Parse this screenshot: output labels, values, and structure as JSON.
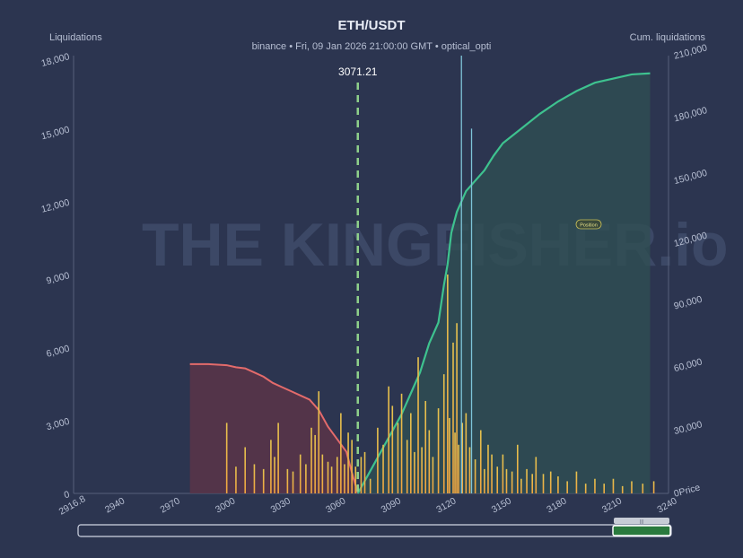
{
  "chart_data": {
    "type": "bar",
    "title": "ETH/USDT",
    "subtitle": "binance  •  Fri, 09 Jan 2026 21:00:00 GMT  •  optical_opti",
    "ylabel_left": "Liquidations",
    "ylabel_right": "Cum. liquidations",
    "xlabel": "Price",
    "xlim": [
      2916.8,
      3240
    ],
    "ylim_left": [
      0,
      18000
    ],
    "ylim_right": [
      0,
      210000
    ],
    "x_ticks": [
      "2916.8",
      "2940",
      "2970",
      "3000",
      "3030",
      "3060",
      "3090",
      "3120",
      "3150",
      "3180",
      "3210",
      "3240"
    ],
    "y_ticks_left": [
      "0",
      "3,000",
      "6,000",
      "9,000",
      "12,000",
      "15,000",
      "18,000"
    ],
    "y_ticks_right": [
      "0",
      "30,000",
      "60,000",
      "90,000",
      "120,000",
      "150,000",
      "180,000",
      "210,000"
    ],
    "current_price": 3071.21,
    "current_price_label": "3071.21",
    "watermark": "THE KINGFISHER.io",
    "badge": "Position",
    "colors": {
      "background": "#2c3550",
      "bars": "#e2b94a",
      "short_cum_line": "#e36b6b",
      "long_cum_line": "#3ec28f",
      "price_line": "#8ed08a",
      "spike_lines": "#7ec4d8"
    },
    "bars": [
      [
        3000,
        2900
      ],
      [
        3005,
        1100
      ],
      [
        3010,
        1900
      ],
      [
        3015,
        1200
      ],
      [
        3020,
        1000
      ],
      [
        3024,
        2200
      ],
      [
        3026,
        1500
      ],
      [
        3028,
        2900
      ],
      [
        3033,
        1000
      ],
      [
        3036,
        900
      ],
      [
        3040,
        1600
      ],
      [
        3043,
        1200
      ],
      [
        3046,
        2700
      ],
      [
        3048,
        2400
      ],
      [
        3050,
        4200
      ],
      [
        3052,
        1600
      ],
      [
        3055,
        1300
      ],
      [
        3057,
        1100
      ],
      [
        3060,
        1500
      ],
      [
        3062,
        3300
      ],
      [
        3064,
        1200
      ],
      [
        3066,
        2500
      ],
      [
        3068,
        2200
      ],
      [
        3070,
        1100
      ],
      [
        3073,
        1500
      ],
      [
        3075,
        1700
      ],
      [
        3078,
        600
      ],
      [
        3082,
        2700
      ],
      [
        3085,
        2000
      ],
      [
        3088,
        4400
      ],
      [
        3090,
        3600
      ],
      [
        3093,
        2900
      ],
      [
        3095,
        4100
      ],
      [
        3098,
        2200
      ],
      [
        3100,
        3300
      ],
      [
        3102,
        1700
      ],
      [
        3104,
        5600
      ],
      [
        3106,
        1900
      ],
      [
        3108,
        3800
      ],
      [
        3110,
        2600
      ],
      [
        3112,
        1500
      ],
      [
        3115,
        3500
      ],
      [
        3118,
        4900
      ],
      [
        3120,
        9000
      ],
      [
        3121,
        3100
      ],
      [
        3123,
        6200
      ],
      [
        3124,
        2500
      ],
      [
        3125,
        7000
      ],
      [
        3126,
        2000
      ],
      [
        3128,
        2900
      ],
      [
        3130,
        3300
      ],
      [
        3132,
        1900
      ],
      [
        3135,
        1400
      ],
      [
        3138,
        2600
      ],
      [
        3140,
        1000
      ],
      [
        3142,
        2000
      ],
      [
        3144,
        1600
      ],
      [
        3147,
        1100
      ],
      [
        3150,
        1600
      ],
      [
        3152,
        1000
      ],
      [
        3155,
        900
      ],
      [
        3158,
        2000
      ],
      [
        3160,
        600
      ],
      [
        3163,
        1000
      ],
      [
        3166,
        800
      ],
      [
        3168,
        1500
      ],
      [
        3172,
        800
      ],
      [
        3176,
        900
      ],
      [
        3180,
        700
      ],
      [
        3185,
        500
      ],
      [
        3190,
        900
      ],
      [
        3195,
        400
      ],
      [
        3200,
        600
      ],
      [
        3205,
        400
      ],
      [
        3210,
        600
      ],
      [
        3215,
        300
      ],
      [
        3220,
        500
      ],
      [
        3226,
        400
      ],
      [
        3232,
        500
      ]
    ],
    "spikes": [
      [
        3127.5,
        18000
      ],
      [
        3133,
        15000
      ]
    ],
    "short_cum": [
      [
        2980,
        62000
      ],
      [
        2990,
        62000
      ],
      [
        3000,
        61500
      ],
      [
        3005,
        60500
      ],
      [
        3010,
        60000
      ],
      [
        3015,
        58000
      ],
      [
        3020,
        56000
      ],
      [
        3025,
        53000
      ],
      [
        3030,
        51000
      ],
      [
        3035,
        49000
      ],
      [
        3040,
        47000
      ],
      [
        3045,
        45000
      ],
      [
        3050,
        40000
      ],
      [
        3055,
        32000
      ],
      [
        3060,
        26000
      ],
      [
        3065,
        20000
      ],
      [
        3068,
        10000
      ],
      [
        3071.21,
        0
      ]
    ],
    "long_cum": [
      [
        3071.21,
        0
      ],
      [
        3075,
        6000
      ],
      [
        3080,
        14000
      ],
      [
        3085,
        22000
      ],
      [
        3090,
        30000
      ],
      [
        3095,
        38000
      ],
      [
        3100,
        48000
      ],
      [
        3105,
        58000
      ],
      [
        3110,
        72000
      ],
      [
        3115,
        82000
      ],
      [
        3118,
        100000
      ],
      [
        3120,
        110000
      ],
      [
        3122,
        125000
      ],
      [
        3125,
        135000
      ],
      [
        3130,
        145000
      ],
      [
        3135,
        150000
      ],
      [
        3140,
        155000
      ],
      [
        3145,
        162000
      ],
      [
        3150,
        168000
      ],
      [
        3160,
        175000
      ],
      [
        3170,
        182000
      ],
      [
        3180,
        188000
      ],
      [
        3190,
        193000
      ],
      [
        3200,
        197000
      ],
      [
        3210,
        199000
      ],
      [
        3220,
        201000
      ],
      [
        3230,
        201500
      ]
    ],
    "range_slider": {
      "from_fraction": 0.0,
      "to_fraction": 1.0,
      "handle_label": "|||"
    }
  }
}
